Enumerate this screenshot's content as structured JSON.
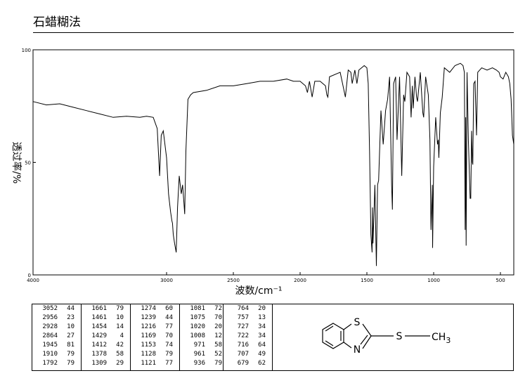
{
  "header": {
    "title": "石蜡糊法"
  },
  "chart_data": {
    "type": "line",
    "xlabel": "波数/cm⁻¹",
    "ylabel": "透过率/%",
    "xlim": [
      4000,
      400
    ],
    "ylim": [
      0,
      100
    ],
    "x_ticks": [
      4000,
      3000,
      2500,
      2000,
      1500,
      1000,
      500
    ],
    "y_ticks": [
      0,
      50,
      100
    ],
    "series": [
      {
        "x": [
          4000,
          3900,
          3800,
          3700,
          3600,
          3500,
          3400,
          3300,
          3200,
          3150,
          3100,
          3070,
          3052,
          3040,
          3025,
          3000,
          2985,
          2970,
          2960,
          2956,
          2950,
          2940,
          2928,
          2918,
          2905,
          2890,
          2880,
          2870,
          2864,
          2855,
          2840,
          2820,
          2800,
          2700,
          2600,
          2500,
          2400,
          2300,
          2200,
          2100,
          2050,
          2000,
          1960,
          1945,
          1930,
          1910,
          1890,
          1850,
          1810,
          1800,
          1792,
          1780,
          1700,
          1661,
          1640,
          1620,
          1610,
          1590,
          1575,
          1560,
          1540,
          1520,
          1500,
          1490,
          1480,
          1470,
          1461,
          1458,
          1454,
          1440,
          1429,
          1420,
          1412,
          1395,
          1378,
          1360,
          1345,
          1330,
          1315,
          1309,
          1300,
          1285,
          1274,
          1255,
          1239,
          1225,
          1216,
          1200,
          1180,
          1169,
          1160,
          1153,
          1140,
          1128,
          1121,
          1100,
          1081,
          1075,
          1060,
          1040,
          1028,
          1020,
          1010,
          1008,
          1000,
          985,
          971,
          965,
          961,
          950,
          936,
          920,
          880,
          840,
          800,
          780,
          770,
          764,
          760,
          757,
          750,
          740,
          727,
          722,
          716,
          710,
          707,
          700,
          690,
          679,
          670,
          640,
          600,
          560,
          530,
          510,
          500,
          480,
          460,
          440,
          430,
          420,
          410,
          400
        ],
        "y": [
          77,
          75.5,
          76,
          74.5,
          73,
          71.5,
          70,
          70.5,
          70,
          70.5,
          70,
          65,
          44,
          62,
          64,
          52,
          36,
          28,
          24,
          23,
          18,
          14,
          10,
          30,
          44,
          36,
          40,
          32,
          27,
          55,
          78,
          80,
          81,
          82,
          84,
          84,
          85,
          86,
          86,
          87,
          86,
          86,
          84,
          81,
          86,
          79,
          86,
          86,
          84,
          80,
          79,
          88,
          90,
          79,
          91,
          90,
          85,
          91,
          85,
          91,
          92,
          93,
          92,
          85,
          55,
          18,
          10,
          30,
          14,
          40,
          4,
          40,
          42,
          73,
          58,
          73,
          78,
          88,
          40,
          29,
          85,
          88,
          60,
          88,
          44,
          80,
          77,
          90,
          88,
          70,
          84,
          74,
          88,
          79,
          77,
          90,
          72,
          70,
          88,
          80,
          60,
          20,
          40,
          12,
          48,
          70,
          58,
          60,
          52,
          72,
          79,
          92,
          90,
          93,
          94,
          93,
          90,
          20,
          70,
          13,
          90,
          60,
          34,
          34,
          64,
          50,
          49,
          85,
          86,
          62,
          90,
          92,
          91,
          92,
          91,
          90,
          88,
          87,
          90,
          88,
          85,
          78,
          62,
          58
        ]
      }
    ],
    "peak_table": [
      [
        [
          "3052",
          "44"
        ],
        [
          "2956",
          "23"
        ],
        [
          "2928",
          "10"
        ],
        [
          "2864",
          "27"
        ],
        [
          "1945",
          "81"
        ],
        [
          "1910",
          "79"
        ],
        [
          "1792",
          "79"
        ]
      ],
      [
        [
          "1661",
          "79"
        ],
        [
          "1461",
          "10"
        ],
        [
          "1454",
          "14"
        ],
        [
          "1429",
          "4"
        ],
        [
          "1412",
          "42"
        ],
        [
          "1378",
          "58"
        ],
        [
          "1309",
          "29"
        ]
      ],
      [
        [
          "1274",
          "60"
        ],
        [
          "1239",
          "44"
        ],
        [
          "1216",
          "77"
        ],
        [
          "1169",
          "70"
        ],
        [
          "1153",
          "74"
        ],
        [
          "1128",
          "79"
        ],
        [
          "1121",
          "77"
        ]
      ],
      [
        [
          "1081",
          "72"
        ],
        [
          "1075",
          "70"
        ],
        [
          "1020",
          "20"
        ],
        [
          "1008",
          "12"
        ],
        [
          "971",
          "58"
        ],
        [
          "961",
          "52"
        ],
        [
          "936",
          "79"
        ]
      ],
      [
        [
          "764",
          "20"
        ],
        [
          "757",
          "13"
        ],
        [
          "727",
          "34"
        ],
        [
          "722",
          "34"
        ],
        [
          "716",
          "64"
        ],
        [
          "707",
          "49"
        ],
        [
          "679",
          "62"
        ]
      ]
    ]
  },
  "structure": {
    "atom_s_ring": "S",
    "atom_n": "N",
    "atom_s_chain": "S",
    "methyl": "CH",
    "methyl_sub": "3"
  }
}
